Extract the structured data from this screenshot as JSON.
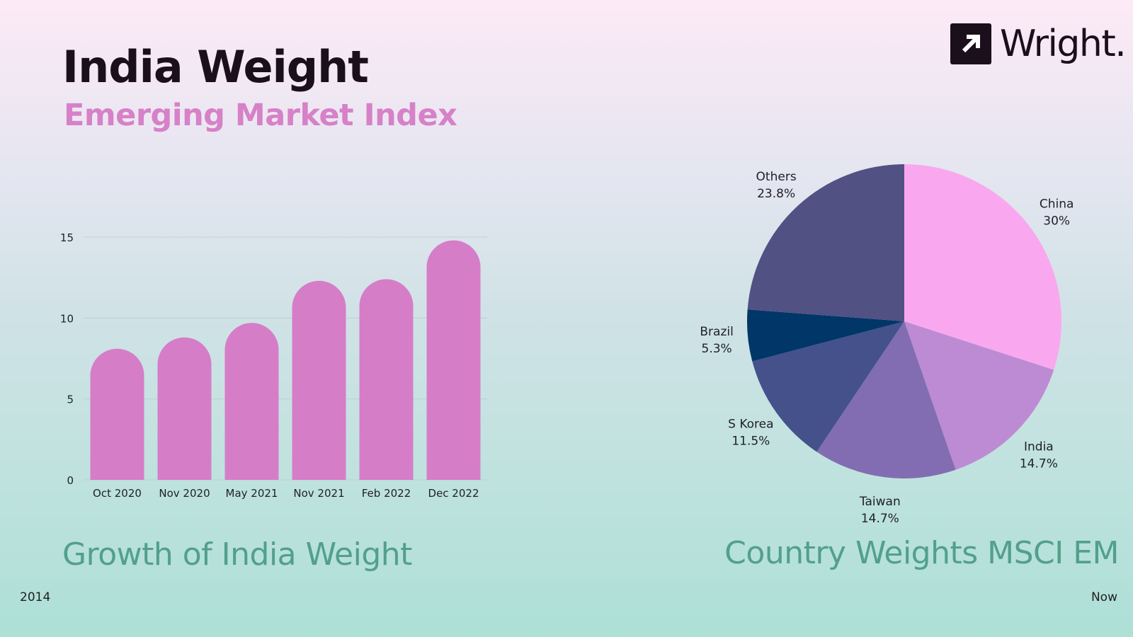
{
  "header": {
    "title": "India Weight",
    "subtitle": "Emerging Market Index"
  },
  "logo": {
    "text": "Wright.",
    "icon": "arrow-up-right-icon"
  },
  "captions": {
    "bar": "Growth of India Weight",
    "pie": "Country Weights MSCI EM"
  },
  "footer": {
    "left": "2014",
    "right": "Now"
  },
  "colors": {
    "bar": "#d67dc8",
    "grid": "#c4cbd6",
    "pie": [
      "#f9a8ef",
      "#bd8bd3",
      "#826db2",
      "#45518b",
      "#003668",
      "#515184"
    ]
  },
  "chart_data": [
    {
      "type": "bar",
      "categories": [
        "Oct 2020",
        "Nov 2020",
        "May 2021",
        "Nov 2021",
        "Feb 2022",
        "Dec 2022"
      ],
      "values": [
        8.1,
        8.8,
        9.7,
        12.3,
        12.4,
        14.8
      ],
      "ylim": [
        0,
        15
      ],
      "yticks": [
        0,
        5,
        10,
        15
      ],
      "grid": true
    },
    {
      "type": "pie",
      "labels": [
        "China",
        "India",
        "Taiwan",
        "S Korea",
        "Brazil",
        "Others"
      ],
      "values": [
        30,
        14.7,
        14.7,
        11.5,
        5.3,
        23.8
      ],
      "value_labels": [
        "30%",
        "14.7%",
        "14.7%",
        "11.5%",
        "5.3%",
        "23.8%"
      ]
    }
  ]
}
